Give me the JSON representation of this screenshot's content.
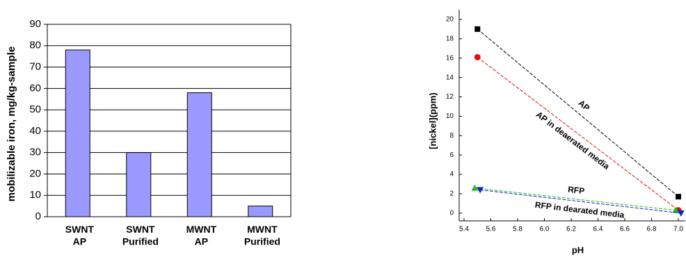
{
  "chart_data": [
    {
      "type": "bar",
      "y_label": "mobilizable iron, mg/kg-sample",
      "categories": [
        "SWNT\nAP",
        "SWNT\nPurified",
        "MWNT\nAP",
        "MWNT\nPurified"
      ],
      "values": [
        78,
        30,
        58,
        5
      ],
      "color": "#9999ff",
      "ylim": [
        0,
        90
      ],
      "yticks": [
        0,
        10,
        20,
        30,
        40,
        50,
        60,
        70,
        80,
        90
      ],
      "grid": true
    },
    {
      "type": "line",
      "x_label": "pH",
      "y_label": "[nickel](ppm)",
      "xlim": [
        5.4,
        7.0
      ],
      "xticks": [
        5.4,
        5.6,
        5.8,
        {
          "value": 6,
          "label": "6.0"
        },
        6.2,
        6.4,
        6.6,
        6.8,
        {
          "value": 7,
          "label": "7.0"
        }
      ],
      "ylim": [
        -0.8,
        21
      ],
      "yticks": [
        0,
        2,
        4,
        6,
        8,
        10,
        12,
        14,
        16,
        18,
        20
      ],
      "series": [
        {
          "name": "AP",
          "color": "#000000",
          "marker": "square",
          "x": [
            5.5,
            7.0
          ],
          "values": [
            19,
            1.7
          ]
        },
        {
          "name": "AP in deaerated media",
          "color": "#dd1111",
          "marker": "circle",
          "x": [
            5.5,
            7.0
          ],
          "values": [
            16.1,
            0.3
          ]
        },
        {
          "name": "RFP",
          "color": "#22bb22",
          "marker": "triangle-up",
          "x": [
            5.48,
            6.98
          ],
          "values": [
            2.6,
            0.3
          ]
        },
        {
          "name": "RFP in dearated media",
          "color": "#1122cc",
          "marker": "triangle-down",
          "x": [
            5.52,
            7.02
          ],
          "values": [
            2.4,
            0.0
          ]
        }
      ]
    }
  ]
}
